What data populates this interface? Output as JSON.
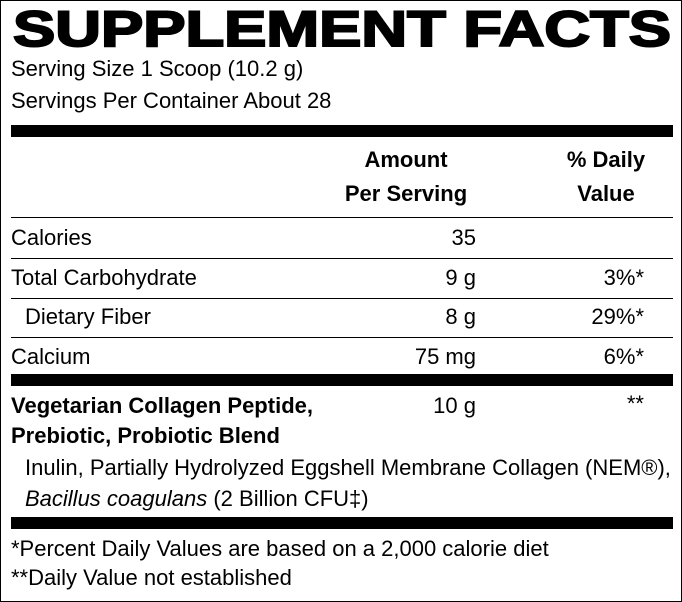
{
  "title": "SUPPLEMENT FACTS",
  "serving_size": "Serving Size 1 Scoop (10.2 g)",
  "servings_per_container": "Servings Per Container About 28",
  "header": {
    "amount": [
      "Amount",
      "Per Serving"
    ],
    "daily_value": [
      "% Daily",
      "Value"
    ]
  },
  "rows": [
    {
      "name": "Calories",
      "amount": "35",
      "dv": null,
      "indent": false
    },
    {
      "name": "Total Carbohydrate",
      "amount": "9 g",
      "dv": "3%*",
      "indent": false
    },
    {
      "name": "Dietary Fiber",
      "amount": "8 g",
      "dv": "29%*",
      "indent": true
    },
    {
      "name": "Calcium",
      "amount": "75 mg",
      "dv": "6%*",
      "indent": false
    }
  ],
  "blend": {
    "name": "Vegetarian Collagen Peptide, Prebiotic, Probiotic Blend",
    "amount": "10 g",
    "dv": "**",
    "ingredients": [
      "Inulin, Partially Hydrolyzed Eggshell Membrane Collagen (NEM®), ",
      "Bacillus coagulans",
      " (2 Billion CFU‡)"
    ]
  },
  "footnotes": [
    "*Percent Daily Values are based on a 2,000 calorie diet",
    "**Daily Value not established"
  ]
}
